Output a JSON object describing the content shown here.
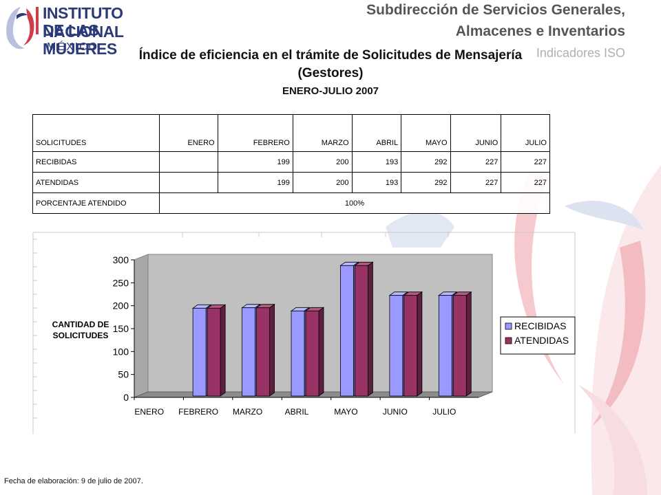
{
  "logo": {
    "line1": "INSTITUTO NACIONAL",
    "line2": "DE LAS MUJERES",
    "line3": "MÉXICO"
  },
  "header": {
    "line1": "Subdirección de Servicios Generales,",
    "line2": "Almacenes e Inventarios",
    "line3": "Indicadores ISO"
  },
  "title": {
    "line1": "Índice de eficiencia en el trámite de Solicitudes de Mensajería",
    "line2": "(Gestores)",
    "subtitle": "ENERO-JULIO 2007"
  },
  "table": {
    "headers": [
      "SOLICITUDES",
      "ENERO",
      "FEBRERO",
      "MARZO",
      "ABRIL",
      "MAYO",
      "JUNIO",
      "JULIO"
    ],
    "rows": [
      [
        "RECIBIDAS",
        "",
        "199",
        "200",
        "193",
        "292",
        "227",
        "227"
      ],
      [
        "ATENDIDAS",
        "",
        "199",
        "200",
        "193",
        "292",
        "227",
        "227"
      ]
    ],
    "pct_label": "PORCENTAJE ATENDIDO",
    "pct_value": "100%"
  },
  "chart_data": {
    "type": "bar",
    "categories": [
      "ENERO",
      "FEBRERO",
      "MARZO",
      "ABRIL",
      "MAYO",
      "JUNIO",
      "JULIO"
    ],
    "series": [
      {
        "name": "RECIBIDAS",
        "values": [
          null,
          199,
          200,
          193,
          292,
          227,
          227
        ],
        "color": "#9999ff"
      },
      {
        "name": "ATENDIDAS",
        "values": [
          null,
          199,
          200,
          193,
          292,
          227,
          227
        ],
        "color": "#993366"
      }
    ],
    "ylabel": "CANTIDAD DE SOLICITUDES",
    "ylabel_lines": [
      "CANTIDAD DE",
      "SOLICITUDES"
    ],
    "yticks": [
      0,
      50,
      100,
      150,
      200,
      250,
      300
    ],
    "ylim": [
      0,
      300
    ],
    "grid": false,
    "legend": "right",
    "three_d": true,
    "wall_color": "#c0c0c0"
  },
  "footer": "Fecha de elaboración: 9 de julio de 2007."
}
